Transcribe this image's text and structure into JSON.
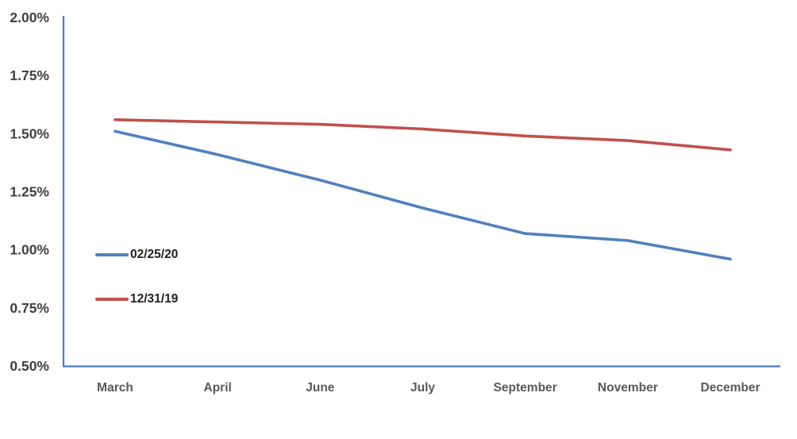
{
  "chart_data": {
    "type": "line",
    "title": "",
    "xlabel": "",
    "ylabel": "",
    "categories": [
      "March",
      "April",
      "June",
      "July",
      "September",
      "November",
      "December"
    ],
    "series": [
      {
        "name": "02/25/20",
        "color": "#4F81BD",
        "values": [
          1.51,
          1.41,
          1.3,
          1.18,
          1.07,
          1.04,
          0.96
        ]
      },
      {
        "name": "12/31/19",
        "color": "#C0504D",
        "values": [
          1.56,
          1.55,
          1.54,
          1.52,
          1.49,
          1.47,
          1.43
        ]
      }
    ],
    "ylim": [
      0.5,
      2.0
    ],
    "ytick_step": 0.25,
    "ytick_labels": [
      "2.00%",
      "1.75%",
      "1.50%",
      "1.25%",
      "1.00%",
      "0.75%",
      "0.50%"
    ],
    "ytick_values": [
      2.0,
      1.75,
      1.5,
      1.25,
      1.0,
      0.75,
      0.5
    ],
    "grid": false,
    "legend_position": "inside-left",
    "colors": {
      "axis_line": "#4E7CC0",
      "ytick_text": "#404040",
      "xtick_text": "#595959",
      "legend_text": "#1F1F1F",
      "background": "#FFFFFF"
    }
  }
}
